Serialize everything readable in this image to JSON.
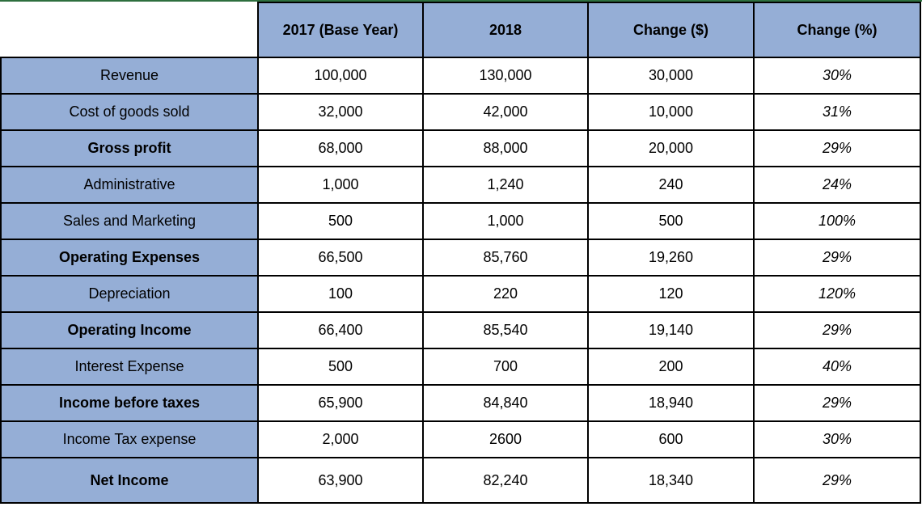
{
  "table": {
    "headers": [
      "",
      "2017 (Base Year)",
      "2018",
      "Change ($)",
      "Change (%)"
    ],
    "rows": [
      {
        "label": "Revenue",
        "bold": false,
        "values": [
          "100,000",
          "130,000",
          "30,000",
          "30%"
        ]
      },
      {
        "label": "Cost of goods sold",
        "bold": false,
        "values": [
          "32,000",
          "42,000",
          "10,000",
          "31%"
        ]
      },
      {
        "label": "Gross profit",
        "bold": true,
        "values": [
          "68,000",
          "88,000",
          "20,000",
          "29%"
        ]
      },
      {
        "label": "Administrative",
        "bold": false,
        "values": [
          "1,000",
          "1,240",
          "240",
          "24%"
        ]
      },
      {
        "label": "Sales and Marketing",
        "bold": false,
        "values": [
          "500",
          "1,000",
          "500",
          "100%"
        ]
      },
      {
        "label": "Operating Expenses",
        "bold": true,
        "values": [
          "66,500",
          "85,760",
          "19,260",
          "29%"
        ]
      },
      {
        "label": "Depreciation",
        "bold": false,
        "values": [
          "100",
          "220",
          "120",
          "120%"
        ]
      },
      {
        "label": "Operating Income",
        "bold": true,
        "values": [
          "66,400",
          "85,540",
          "19,140",
          "29%"
        ]
      },
      {
        "label": "Interest Expense",
        "bold": false,
        "values": [
          "500",
          "700",
          "200",
          "40%"
        ]
      },
      {
        "label": "Income before taxes",
        "bold": true,
        "values": [
          "65,900",
          "84,840",
          "18,940",
          "29%"
        ]
      },
      {
        "label": "Income Tax expense",
        "bold": false,
        "values": [
          "2,000",
          "2600",
          "600",
          "30%"
        ]
      },
      {
        "label": "Net Income",
        "bold": true,
        "values": [
          "63,900",
          "82,240",
          "18,340",
          "29%"
        ]
      }
    ]
  },
  "colors": {
    "header_fill": "#95aed6",
    "label_fill": "#95aed6",
    "grid": "#000000",
    "top_border": "#2e6f3e"
  }
}
